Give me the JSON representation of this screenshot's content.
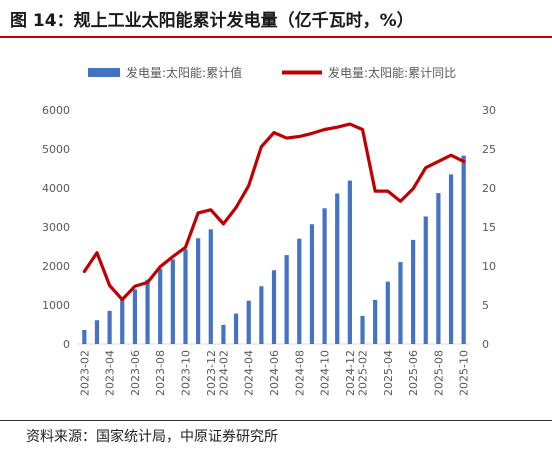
{
  "title": "图 14：规上工业太阳能累计发电量（亿千瓦时，%）",
  "source": "资料来源：国家统计局，中原证券研究所",
  "chart_data": {
    "type": "bar+line",
    "categories": [
      "2023-02",
      "2023-03",
      "2023-04",
      "2023-05",
      "2023-06",
      "2023-07",
      "2023-08",
      "2023-09",
      "2023-10",
      "2023-11",
      "2023-12",
      "2024-02",
      "2024-03",
      "2024-04",
      "2024-05",
      "2024-06",
      "2024-07",
      "2024-08",
      "2024-09",
      "2024-10",
      "2024-11",
      "2024-12",
      "2025-02",
      "2025-03",
      "2025-04",
      "2025-05",
      "2025-06",
      "2025-07",
      "2025-08",
      "2025-09",
      "2025-10"
    ],
    "x_tick_labels": [
      "2023-02",
      "2023-04",
      "2023-06",
      "2023-08",
      "2023-10",
      "2023-12",
      "2024-02",
      "2024-04",
      "2024-06",
      "2024-08",
      "2024-10",
      "2024-12",
      "2025-02",
      "2025-04",
      "2025-06",
      "2025-08",
      "2025-10"
    ],
    "series": [
      {
        "name": "发电量:太阳能:累计值",
        "type": "bar",
        "axis": "left",
        "color": "#4472c4",
        "values": [
          360,
          610,
          850,
          1130,
          1400,
          1650,
          1930,
          2170,
          2430,
          2710,
          2940,
          490,
          780,
          1110,
          1480,
          1890,
          2280,
          2700,
          3070,
          3480,
          3860,
          4190,
          720,
          1130,
          1600,
          2100,
          2670,
          3270,
          3870,
          4350,
          4830
        ]
      },
      {
        "name": "发电量:太阳能:累计同比",
        "type": "line",
        "axis": "right",
        "color": "#c00000",
        "values": [
          9.3,
          11.7,
          7.5,
          5.7,
          7.4,
          7.9,
          9.9,
          11.2,
          12.4,
          16.8,
          17.2,
          15.4,
          17.5,
          20.3,
          25.3,
          27.1,
          26.4,
          26.6,
          27.0,
          27.5,
          27.8,
          28.2,
          27.5,
          19.6,
          19.6,
          18.3,
          19.9,
          22.6,
          23.4,
          24.2,
          23.4
        ]
      }
    ],
    "y_left": {
      "min": 0,
      "max": 6000,
      "ticks": [
        0,
        1000,
        2000,
        3000,
        4000,
        5000,
        6000
      ]
    },
    "y_right": {
      "min": 0,
      "max": 30,
      "ticks": [
        0,
        5,
        10,
        15,
        20,
        25,
        30
      ]
    },
    "legend_position": "top",
    "grid": false
  }
}
